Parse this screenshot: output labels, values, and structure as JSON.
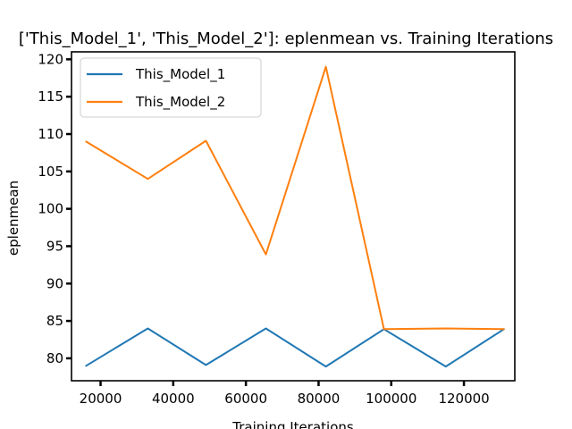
{
  "chart_data": {
    "type": "line",
    "title": "['This_Model_1', 'This_Model_2']: eplenmean vs. Training Iterations",
    "xlabel": "Training Iterations",
    "ylabel": "eplenmean",
    "xlim": [
      12000,
      134000
    ],
    "ylim": [
      77,
      121
    ],
    "xticks": [
      20000,
      40000,
      60000,
      80000,
      100000,
      120000
    ],
    "xtick_labels": [
      "20000",
      "40000",
      "60000",
      "80000",
      "100000",
      "120000"
    ],
    "yticks": [
      80,
      85,
      90,
      95,
      100,
      105,
      110,
      115,
      120
    ],
    "ytick_labels": [
      "80",
      "85",
      "90",
      "95",
      "100",
      "105",
      "110",
      "115",
      "120"
    ],
    "grid": false,
    "legend": "top-left",
    "series": [
      {
        "name": "This_Model_1",
        "color": "#1f77b4",
        "x": [
          16000,
          33000,
          49000,
          65500,
          82000,
          98000,
          115000,
          131000
        ],
        "y": [
          79,
          84,
          79.1,
          84,
          78.9,
          83.9,
          78.9,
          83.9
        ]
      },
      {
        "name": "This_Model_2",
        "color": "#ff7f0e",
        "x": [
          16000,
          33000,
          49000,
          65500,
          82000,
          98000,
          115000,
          131000
        ],
        "y": [
          109,
          104,
          109.1,
          93.9,
          119,
          83.9,
          84,
          83.9
        ]
      }
    ]
  }
}
